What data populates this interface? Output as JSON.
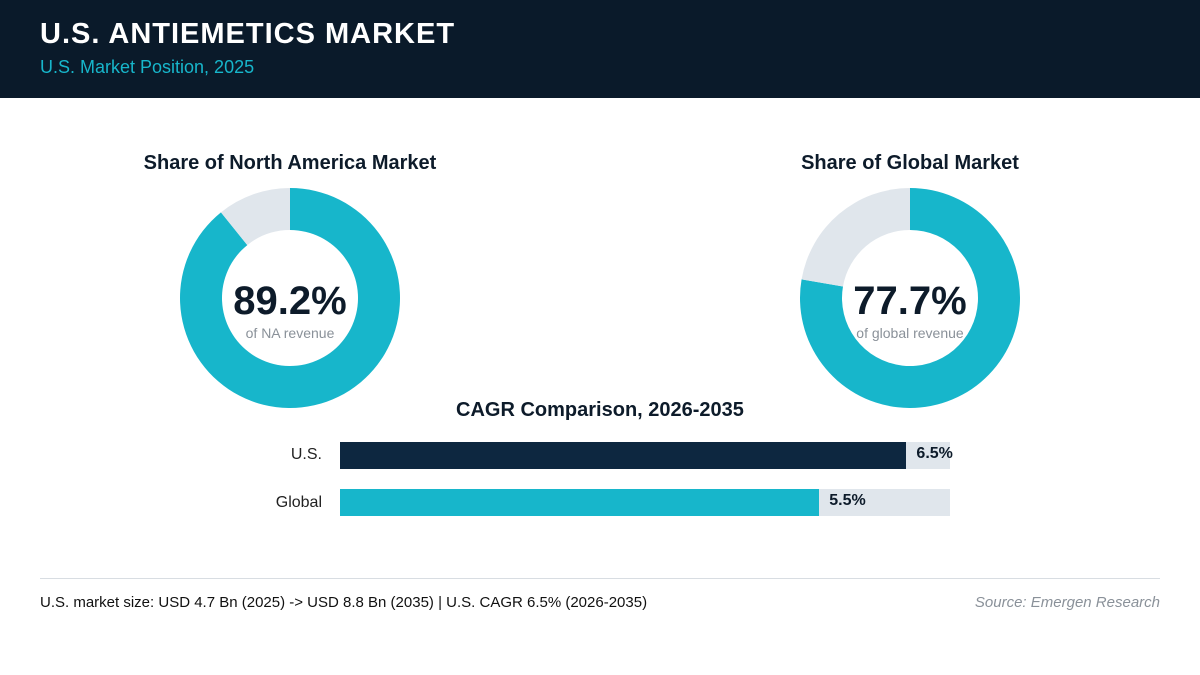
{
  "header": {
    "title": "U.S. ANTIEMETICS MARKET",
    "subtitle": "U.S. Market Position, 2025"
  },
  "colors": {
    "accent": "#17b6cb",
    "navy": "#0d2740",
    "track": "#e0e6ec"
  },
  "chart_data": [
    {
      "type": "pie",
      "title": "Share of North America Market",
      "center_value": "89.2%",
      "center_label": "of NA revenue",
      "values": [
        89.2,
        10.8
      ]
    },
    {
      "type": "pie",
      "title": "Share of Global Market",
      "center_value": "77.7%",
      "center_label": "of global revenue",
      "values": [
        77.7,
        22.3
      ]
    },
    {
      "type": "bar",
      "title": "CAGR Comparison, 2026-2035",
      "categories": [
        "U.S.",
        "Global"
      ],
      "values": [
        6.5,
        5.5
      ],
      "value_labels": [
        "6.5%",
        "5.5%"
      ],
      "xlim": [
        0,
        7
      ]
    }
  ],
  "footer": {
    "summary": "U.S. market size: USD 4.7 Bn (2025) -> USD 8.8 Bn (2035)  |  U.S. CAGR 6.5% (2026-2035)",
    "source": "Source: Emergen Research"
  }
}
